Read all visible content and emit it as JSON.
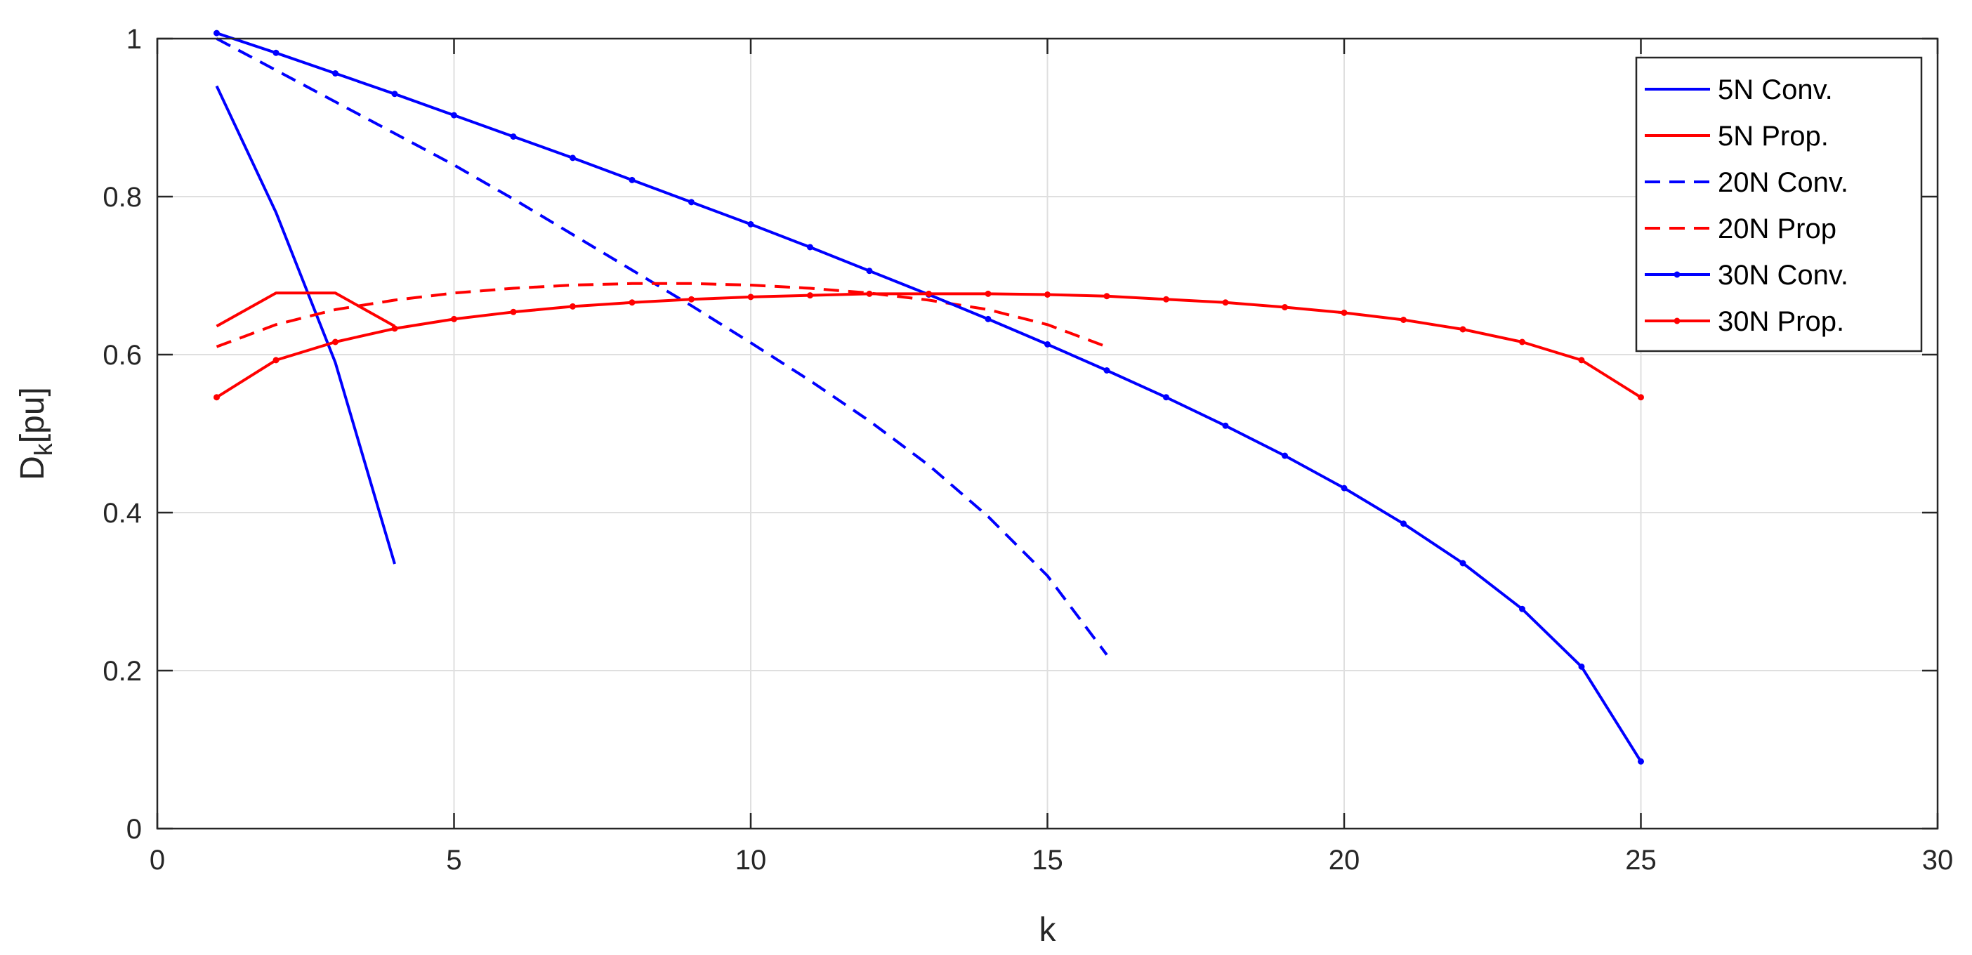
{
  "chart_data": {
    "type": "line",
    "title": "",
    "xlabel": "k",
    "ylabel_main": "D",
    "ylabel_sub": "k",
    "ylabel_unit": "[pu]",
    "xlim": [
      0,
      30
    ],
    "ylim": [
      0,
      1
    ],
    "xticks": [
      0,
      5,
      10,
      15,
      20,
      25,
      30
    ],
    "yticks": [
      0,
      0.2,
      0.4,
      0.6,
      0.8,
      1
    ],
    "xtick_labels": [
      "0",
      "5",
      "10",
      "15",
      "20",
      "25",
      "30"
    ],
    "ytick_labels": [
      "0",
      "0.2",
      "0.4",
      "0.6",
      "0.8",
      "1"
    ],
    "grid": true,
    "legend_position": "top-right",
    "series": [
      {
        "name": "5N Conv.",
        "color": "#0000ff",
        "style": "solid",
        "markers": false,
        "x": [
          1,
          2,
          3,
          4
        ],
        "y": [
          0.94,
          0.78,
          0.59,
          0.335
        ]
      },
      {
        "name": "5N Prop.",
        "color": "#ff0000",
        "style": "solid",
        "markers": false,
        "x": [
          1,
          2,
          3,
          4
        ],
        "y": [
          0.636,
          0.678,
          0.678,
          0.636
        ]
      },
      {
        "name": "20N Conv.",
        "color": "#0000ff",
        "style": "dashed",
        "markers": false,
        "x": [
          1,
          2,
          3,
          4,
          5,
          6,
          7,
          8,
          9,
          10,
          11,
          12,
          13,
          14,
          15,
          16
        ],
        "y": [
          1.0,
          0.96,
          0.92,
          0.88,
          0.84,
          0.797,
          0.752,
          0.707,
          0.662,
          0.615,
          0.567,
          0.516,
          0.46,
          0.395,
          0.32,
          0.22
        ]
      },
      {
        "name": "20N Prop",
        "color": "#ff0000",
        "style": "dashed",
        "markers": false,
        "x": [
          1,
          2,
          3,
          4,
          5,
          6,
          7,
          8,
          9,
          10,
          11,
          12,
          13,
          14,
          15,
          16
        ],
        "y": [
          0.61,
          0.638,
          0.657,
          0.669,
          0.678,
          0.684,
          0.688,
          0.69,
          0.69,
          0.688,
          0.684,
          0.678,
          0.669,
          0.657,
          0.638,
          0.61
        ]
      },
      {
        "name": "30N Conv.",
        "color": "#0000ff",
        "style": "solid",
        "markers": true,
        "x": [
          1,
          2,
          3,
          4,
          5,
          6,
          7,
          8,
          9,
          10,
          11,
          12,
          13,
          14,
          15,
          16,
          17,
          18,
          19,
          20,
          21,
          22,
          23,
          24,
          25
        ],
        "y": [
          1.007,
          0.982,
          0.956,
          0.93,
          0.903,
          0.876,
          0.849,
          0.821,
          0.793,
          0.765,
          0.736,
          0.706,
          0.676,
          0.645,
          0.613,
          0.58,
          0.546,
          0.51,
          0.472,
          0.431,
          0.386,
          0.336,
          0.278,
          0.205,
          0.085
        ]
      },
      {
        "name": "30N Prop.",
        "color": "#ff0000",
        "style": "solid",
        "markers": true,
        "x": [
          1,
          2,
          3,
          4,
          5,
          6,
          7,
          8,
          9,
          10,
          11,
          12,
          13,
          14,
          15,
          16,
          17,
          18,
          19,
          20,
          21,
          22,
          23,
          24,
          25
        ],
        "y": [
          0.546,
          0.593,
          0.616,
          0.633,
          0.645,
          0.654,
          0.661,
          0.666,
          0.67,
          0.673,
          0.675,
          0.677,
          0.677,
          0.677,
          0.676,
          0.674,
          0.67,
          0.666,
          0.66,
          0.653,
          0.644,
          0.632,
          0.616,
          0.593,
          0.546
        ]
      }
    ]
  }
}
